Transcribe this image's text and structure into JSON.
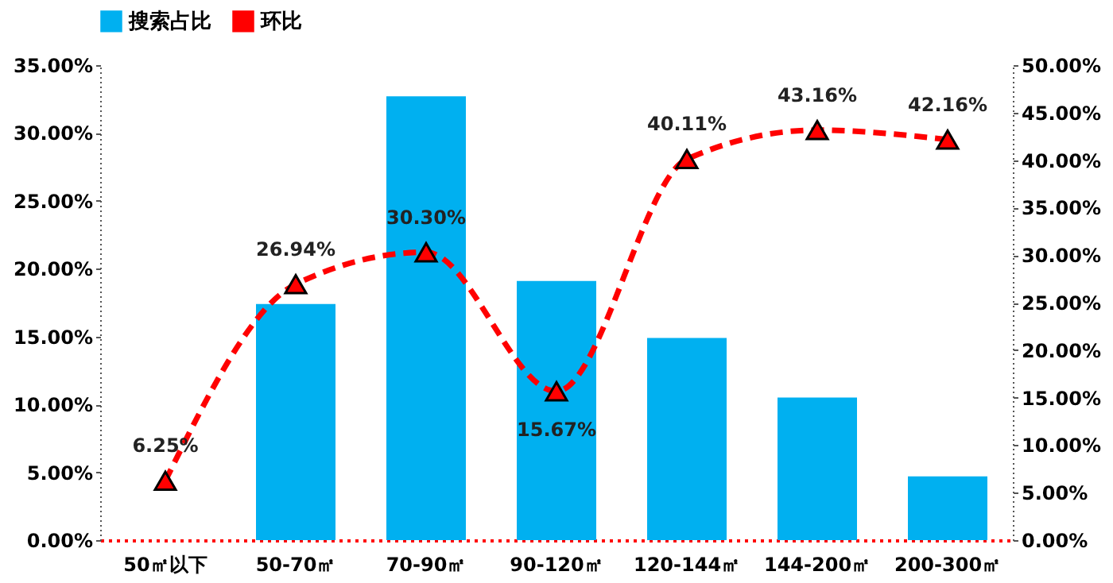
{
  "chart_data": {
    "type": "bar",
    "categories": [
      "50㎡以下",
      "50-70㎡",
      "70-90㎡",
      "90-120㎡",
      "120-144㎡",
      "144-200㎡",
      "200-300㎡"
    ],
    "series": [
      {
        "name": "搜索占比",
        "color": "#00b0f0",
        "values": [
          null,
          17.4,
          32.7,
          19.1,
          14.9,
          10.5,
          4.7
        ]
      },
      {
        "name": "环比",
        "type": "line",
        "axis": "y2",
        "color": "#ff0000",
        "marker": "triangle",
        "line_style": "dashed",
        "values": [
          6.25,
          26.94,
          30.3,
          15.67,
          40.11,
          43.16,
          42.16
        ],
        "value_labels": [
          "6.25%",
          "26.94%",
          "30.30%",
          "15.67%",
          "40.11%",
          "43.16%",
          "42.16%"
        ]
      }
    ],
    "ylim": [
      0,
      35
    ],
    "yticks": [
      {
        "value": 0,
        "label": "0.00%"
      },
      {
        "value": 5,
        "label": "5.00%"
      },
      {
        "value": 10,
        "label": "10.00%"
      },
      {
        "value": 15,
        "label": "15.00%"
      },
      {
        "value": 20,
        "label": "20.00%"
      },
      {
        "value": 25,
        "label": "25.00%"
      },
      {
        "value": 30,
        "label": "30.00%"
      },
      {
        "value": 35,
        "label": "35.00%"
      }
    ],
    "y2lim": [
      0,
      50
    ],
    "y2ticks": [
      {
        "value": 0,
        "label": "0.00%"
      },
      {
        "value": 5,
        "label": "5.00%"
      },
      {
        "value": 10,
        "label": "10.00%"
      },
      {
        "value": 15,
        "label": "15.00%"
      },
      {
        "value": 20,
        "label": "20.00%"
      },
      {
        "value": 25,
        "label": "25.00%"
      },
      {
        "value": 30,
        "label": "30.00%"
      },
      {
        "value": 35,
        "label": "35.00%"
      },
      {
        "value": 40,
        "label": "40.00%"
      },
      {
        "value": 45,
        "label": "45.00%"
      },
      {
        "value": 50,
        "label": "50.00%"
      }
    ],
    "grid": false,
    "legend": "top"
  }
}
